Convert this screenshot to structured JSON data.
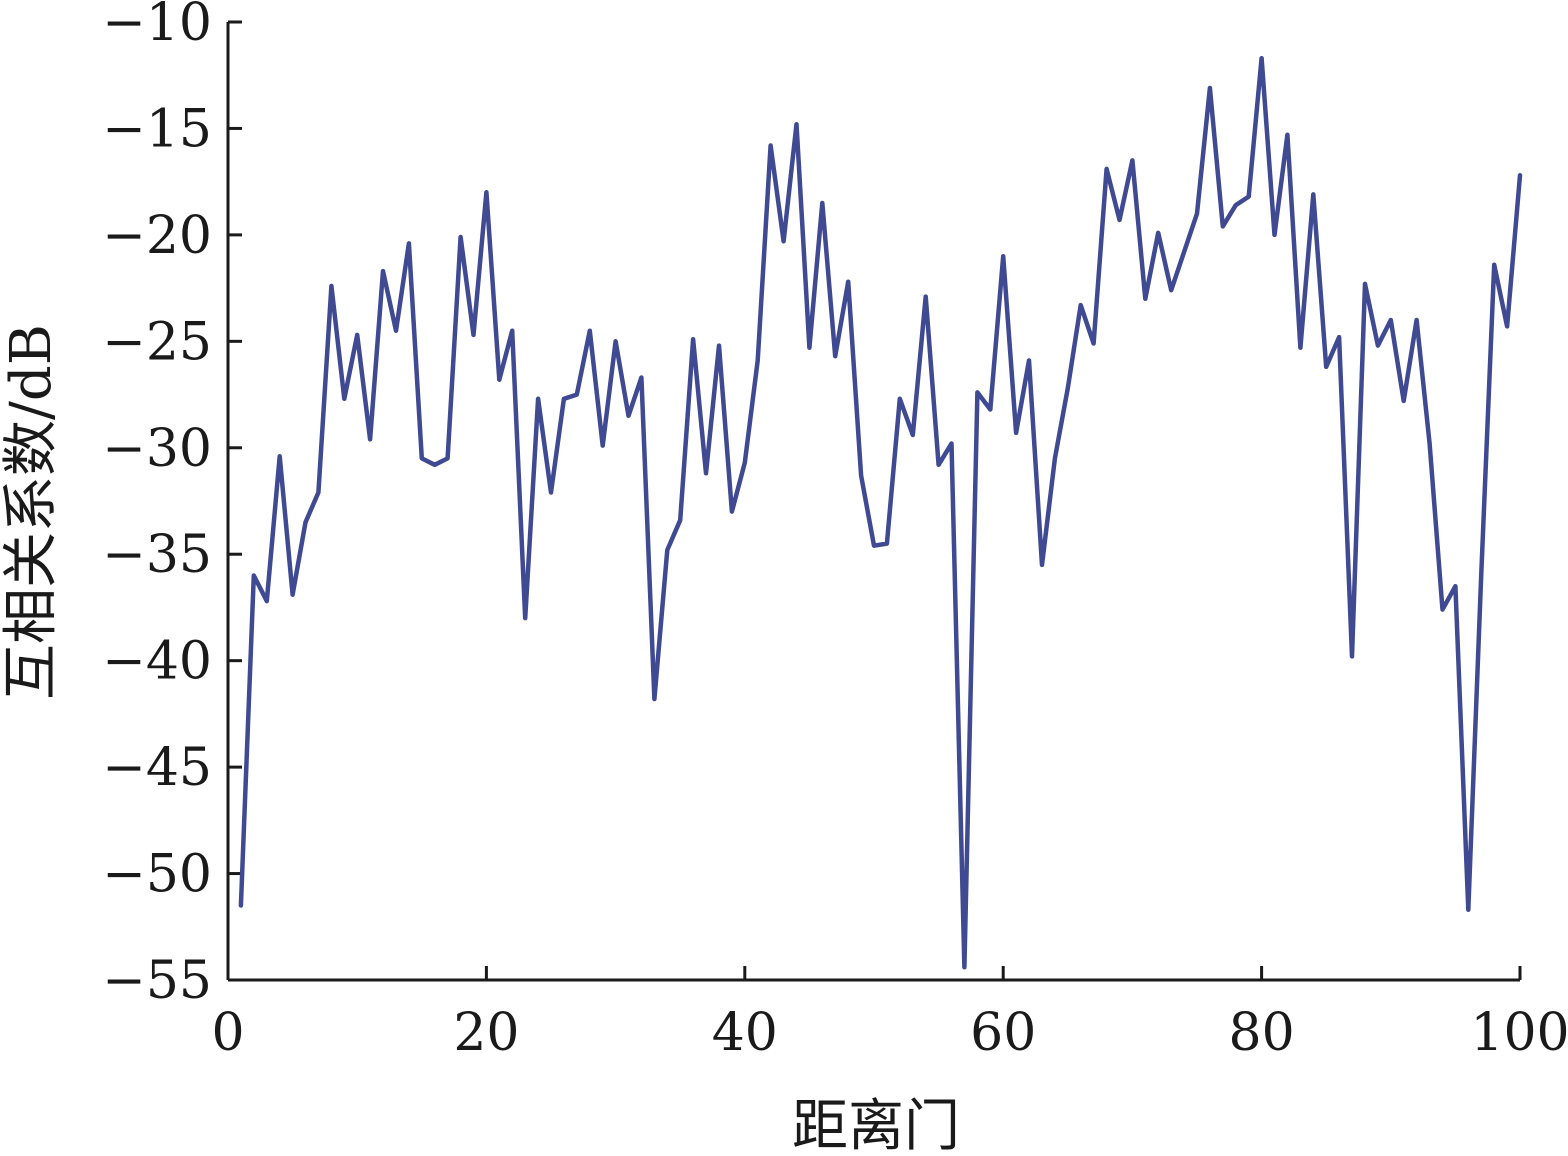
{
  "chart_data": {
    "type": "line",
    "xlabel": "距离门",
    "ylabel": "互相关系数/dB",
    "xlim": [
      0,
      100
    ],
    "ylim": [
      -55,
      -10
    ],
    "xticks": [
      0,
      20,
      40,
      60,
      80,
      100
    ],
    "yticks": [
      -10,
      -15,
      -20,
      -25,
      -30,
      -35,
      -40,
      -45,
      -50,
      -55
    ],
    "grid": false,
    "colors": {
      "series": "#3f4a93",
      "axis": "#1a1a1a"
    },
    "series": [
      {
        "x": [
          1,
          2,
          3,
          4,
          5,
          6,
          7,
          8,
          9,
          10,
          11,
          12,
          13,
          14,
          15,
          16,
          17,
          18,
          19,
          20,
          21,
          22,
          23,
          24,
          25,
          26,
          27,
          28,
          29,
          30,
          31,
          32,
          33,
          34,
          35,
          36,
          37,
          38,
          39,
          40,
          41,
          42,
          43,
          44,
          45,
          46,
          47,
          48,
          49,
          50,
          51,
          52,
          53,
          54,
          55,
          56,
          57,
          58,
          59,
          60,
          61,
          62,
          63,
          64,
          65,
          66,
          67,
          68,
          69,
          70,
          71,
          72,
          73,
          74,
          75,
          76,
          77,
          78,
          79,
          80,
          81,
          82,
          83,
          84,
          85,
          86,
          87,
          88,
          89,
          90,
          91,
          92,
          93,
          94,
          95,
          96,
          97,
          98,
          99,
          100
        ],
        "values": [
          -51.5,
          -36.0,
          -37.2,
          -30.4,
          -36.9,
          -33.5,
          -32.1,
          -22.4,
          -27.7,
          -24.7,
          -29.6,
          -21.7,
          -24.5,
          -20.4,
          -30.5,
          -30.8,
          -30.5,
          -20.1,
          -24.7,
          -18.0,
          -26.8,
          -24.5,
          -38.0,
          -27.7,
          -32.1,
          -27.7,
          -27.5,
          -24.5,
          -29.9,
          -25.0,
          -28.5,
          -26.7,
          -41.8,
          -34.8,
          -33.4,
          -24.9,
          -31.2,
          -25.2,
          -33.0,
          -30.7,
          -25.9,
          -15.8,
          -20.3,
          -14.8,
          -25.3,
          -18.5,
          -25.7,
          -22.2,
          -31.3,
          -34.6,
          -34.5,
          -27.7,
          -29.4,
          -22.9,
          -30.8,
          -29.8,
          -54.4,
          -27.4,
          -28.2,
          -21.0,
          -29.3,
          -25.9,
          -35.5,
          -30.5,
          -27.2,
          -23.3,
          -25.1,
          -16.9,
          -19.3,
          -16.5,
          -23.0,
          -19.9,
          -22.6,
          -20.8,
          -19.0,
          -13.1,
          -19.6,
          -18.6,
          -18.2,
          -11.7,
          -20.0,
          -15.3,
          -25.3,
          -18.1,
          -26.2,
          -24.8,
          -39.8,
          -22.3,
          -25.2,
          -24.0,
          -27.8,
          -24.0,
          -29.8,
          -37.6,
          -36.5,
          -51.7,
          -36.0,
          -21.4,
          -24.3,
          -17.2
        ]
      }
    ]
  }
}
